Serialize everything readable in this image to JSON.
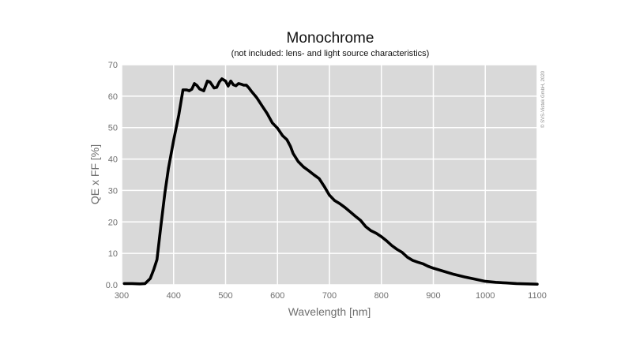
{
  "chart_data": {
    "type": "line",
    "title": "Monochrome",
    "subtitle": "(not included: lens- and light source characteristics)",
    "xlabel": "Wavelength [nm]",
    "ylabel": "QE x FF [%]",
    "xlim": [
      300,
      1100
    ],
    "ylim": [
      0,
      70
    ],
    "x_ticks": [
      "300",
      "400",
      "500",
      "600",
      "700",
      "800",
      "900",
      "1000",
      "1100"
    ],
    "y_ticks": [
      "0.0",
      "10",
      "20",
      "30",
      "40",
      "50",
      "60",
      "70"
    ],
    "grid": true,
    "credit": "© SVS-Vistek GmbH, 2020",
    "colors": {
      "plot_background": "#d9d9d9",
      "grid": "#ffffff",
      "line": "#000000"
    },
    "series": [
      {
        "x": [
          305,
          320,
          335,
          345,
          355,
          362,
          368,
          375,
          383,
          390,
          400,
          410,
          418,
          425,
          430,
          435,
          440,
          445,
          450,
          458,
          465,
          470,
          478,
          483,
          488,
          493,
          500,
          505,
          510,
          515,
          520,
          525,
          530,
          535,
          540,
          545,
          550,
          560,
          570,
          580,
          590,
          600,
          610,
          618,
          625,
          630,
          640,
          650,
          660,
          670,
          680,
          690,
          700,
          710,
          720,
          730,
          740,
          750,
          760,
          770,
          780,
          790,
          800,
          810,
          820,
          830,
          840,
          850,
          860,
          870,
          880,
          890,
          900,
          920,
          940,
          960,
          980,
          1000,
          1020,
          1040,
          1060,
          1080,
          1100
        ],
        "y": [
          0.4,
          0.4,
          0.3,
          0.4,
          2,
          5,
          8,
          18,
          29,
          37,
          46,
          54,
          62,
          62,
          61.7,
          62.2,
          64,
          63.4,
          62.3,
          61.7,
          64.8,
          64.5,
          62.6,
          62.8,
          64.5,
          65.5,
          64.8,
          63.2,
          64.8,
          63.6,
          63.3,
          64,
          63.8,
          63.5,
          63.5,
          62.6,
          61.5,
          59.5,
          57,
          54.5,
          51.5,
          49.8,
          47.4,
          46.2,
          44,
          41.8,
          39.2,
          37.5,
          36.3,
          35,
          33.8,
          31.3,
          28.5,
          26.8,
          25.8,
          24.6,
          23.2,
          21.8,
          20.5,
          18.5,
          17.2,
          16.4,
          15.3,
          14,
          12.5,
          11.3,
          10.3,
          8.8,
          7.8,
          7.2,
          6.7,
          5.9,
          5.3,
          4.3,
          3.3,
          2.5,
          1.8,
          1.1,
          0.8,
          0.6,
          0.4,
          0.3,
          0.2
        ]
      }
    ]
  }
}
